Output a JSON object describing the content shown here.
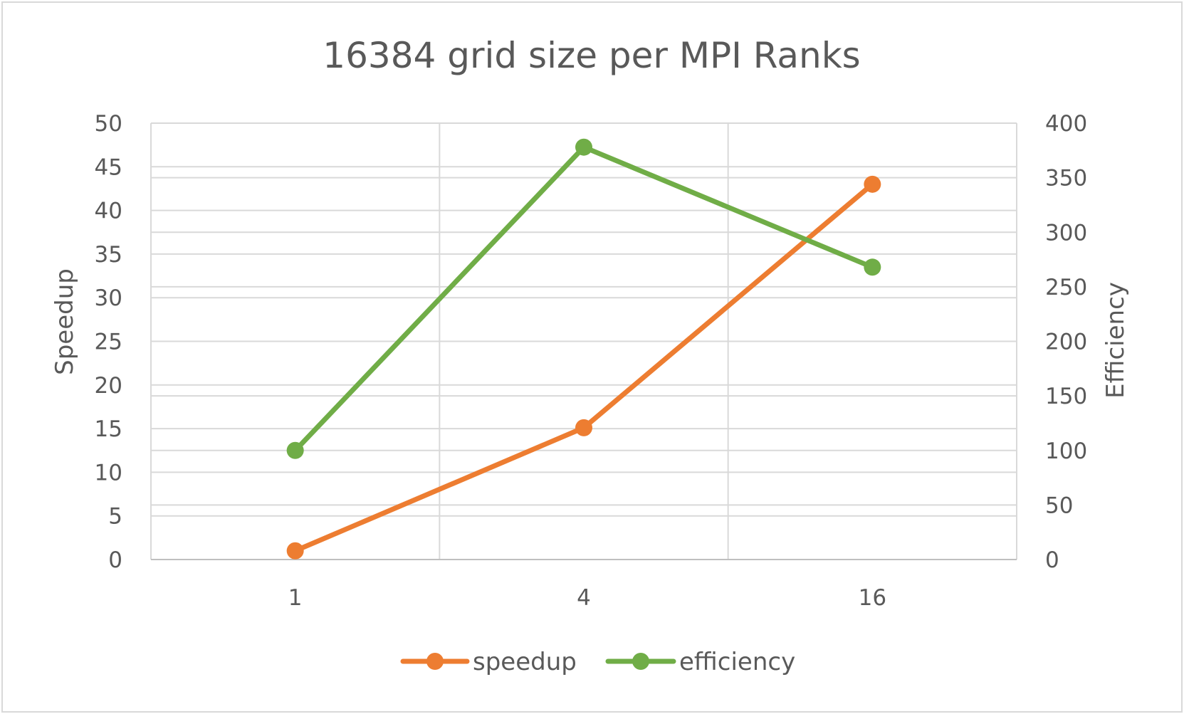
{
  "chart_data": {
    "type": "line",
    "title": "16384 grid size per MPI Ranks",
    "categories": [
      "1",
      "4",
      "16"
    ],
    "y_left": {
      "label": "Speedup",
      "range": [
        0,
        50
      ],
      "ticks": [
        0,
        5,
        10,
        15,
        20,
        25,
        30,
        35,
        40,
        45,
        50
      ]
    },
    "y_right": {
      "label": "Efficiency",
      "range": [
        0,
        400
      ],
      "ticks": [
        0,
        50,
        100,
        150,
        200,
        250,
        300,
        350,
        400
      ]
    },
    "grid": true,
    "legend_position": "bottom",
    "series": [
      {
        "name": "speedup",
        "axis": "left",
        "color": "#ED7D31",
        "values": [
          1,
          15.1,
          43
        ]
      },
      {
        "name": "efficiency",
        "axis": "right",
        "color": "#70AD47",
        "values": [
          100,
          378,
          268
        ]
      }
    ]
  }
}
